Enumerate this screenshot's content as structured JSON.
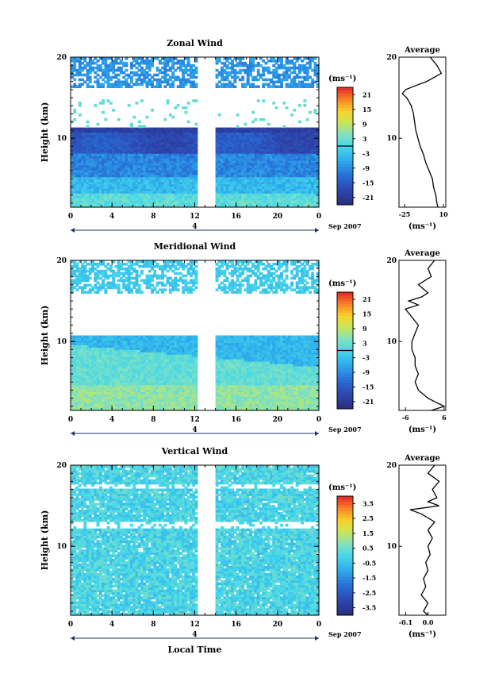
{
  "figure": {
    "x_title": "Local Time",
    "date_label": "Sep 2007",
    "day_label": "4"
  },
  "chart_data": [
    {
      "type": "heatmap",
      "title": "Zonal Wind",
      "ylabel": "Height (km)",
      "unit": "(ms⁻¹)",
      "x_ticks": [
        "0",
        "4",
        "8",
        "12",
        "16",
        "20",
        "0"
      ],
      "y_ticks": [
        "10",
        "20"
      ],
      "xlim": [
        0,
        24
      ],
      "ylim": [
        1.5,
        20
      ],
      "colorbar_ticks": [
        "21",
        "15",
        "9",
        "3",
        "-3",
        "-9",
        "-15",
        "-21"
      ],
      "colorbar_range": [
        -24,
        24
      ],
      "data_gap_hours": [
        12.3,
        13.9
      ],
      "contour_at": 0,
      "profile": {
        "title": "Average",
        "x_ticks": [
          "-25",
          "10"
        ],
        "xlim": [
          -30,
          12
        ],
        "y_ticks": [
          "10",
          "20"
        ],
        "xlabel": "(ms⁻¹)",
        "heights_km": [
          1.5,
          2,
          3,
          4,
          5,
          6,
          7,
          8,
          9,
          10,
          11,
          12,
          13,
          14,
          15,
          15.5,
          16,
          16.5,
          17,
          18,
          19,
          20
        ],
        "values": [
          5,
          4,
          3,
          1,
          0,
          -3,
          -6,
          -8,
          -11,
          -13,
          -15,
          -16,
          -17,
          -19,
          -23,
          -27,
          -24,
          -15,
          -5,
          8,
          4,
          -2
        ]
      }
    },
    {
      "type": "heatmap",
      "title": "Meridional Wind",
      "ylabel": "Height (km)",
      "unit": "(ms⁻¹)",
      "x_ticks": [
        "0",
        "4",
        "8",
        "12",
        "16",
        "20",
        "0"
      ],
      "y_ticks": [
        "10",
        "20"
      ],
      "xlim": [
        0,
        24
      ],
      "ylim": [
        1.5,
        20
      ],
      "colorbar_ticks": [
        "21",
        "15",
        "9",
        "3",
        "-3",
        "-9",
        "-15",
        "-21"
      ],
      "colorbar_range": [
        -24,
        24
      ],
      "data_gap_hours": [
        12.3,
        13.9
      ],
      "contour_at": 0,
      "profile": {
        "title": "Average",
        "x_ticks": [
          "-6",
          "6"
        ],
        "xlim": [
          -8,
          6.5
        ],
        "y_ticks": [
          "10",
          "20"
        ],
        "xlabel": "(ms⁻¹)",
        "heights_km": [
          1.5,
          2,
          3,
          4,
          5,
          6,
          7,
          8,
          9,
          10,
          11,
          12,
          13,
          14,
          14.5,
          15,
          15.5,
          16,
          17,
          18,
          19,
          20
        ],
        "values": [
          2,
          6,
          1,
          -2,
          -3,
          -2,
          -3,
          -3,
          -4,
          -4,
          -3,
          -2,
          -4,
          -6,
          -2,
          -5,
          -1,
          1,
          -2,
          2,
          1,
          3
        ]
      }
    },
    {
      "type": "heatmap",
      "title": "Vertical Wind",
      "ylabel": "Height (km)",
      "unit": "(ms⁻¹)",
      "x_ticks": [
        "0",
        "4",
        "8",
        "12",
        "16",
        "20",
        "0"
      ],
      "y_ticks": [
        "10",
        "20"
      ],
      "xlim": [
        0,
        24
      ],
      "ylim": [
        1.5,
        20
      ],
      "colorbar_ticks": [
        "3.5",
        "2.5",
        "1.5",
        "0.5",
        "-0.5",
        "-1.5",
        "-2.5",
        "-3.5"
      ],
      "colorbar_range": [
        -4,
        4
      ],
      "data_gap_hours": [
        12.3,
        13.9
      ],
      "profile": {
        "title": "Average",
        "x_ticks": [
          "-0.1",
          "0.0"
        ],
        "xlim": [
          -0.13,
          0.08
        ],
        "y_ticks": [
          "10",
          "20"
        ],
        "xlabel": "(ms⁻¹)",
        "heights_km": [
          1.5,
          2,
          3,
          4,
          5,
          6,
          7,
          8,
          9,
          10,
          11,
          12,
          13,
          14,
          14.5,
          15,
          15.5,
          16,
          17,
          18,
          19,
          20
        ],
        "values": [
          0.0,
          -0.02,
          0.0,
          -0.03,
          -0.01,
          -0.02,
          0.0,
          -0.01,
          0.01,
          0.0,
          0.02,
          0.0,
          0.03,
          -0.03,
          -0.08,
          0.05,
          0.0,
          0.04,
          0.02,
          0.05,
          0.0,
          0.03
        ]
      }
    }
  ]
}
